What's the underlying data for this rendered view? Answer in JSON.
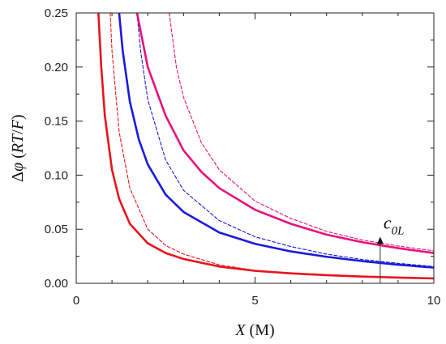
{
  "chart_data": {
    "type": "line",
    "xlabel": {
      "var": "X",
      "unit": " (M)"
    },
    "ylabel": {
      "delta": "Δ",
      "phi": "φ",
      "open": " (",
      "var": "RT",
      "slash": "/",
      "var2": "F",
      "close": ")"
    },
    "xlim": [
      0,
      10
    ],
    "ylim": [
      0,
      0.25
    ],
    "x_ticks": [
      0,
      5,
      10
    ],
    "x_tick_labels": [
      "0",
      "5",
      "10"
    ],
    "y_ticks": [
      0.0,
      0.05,
      0.1,
      0.15,
      0.2,
      0.25
    ],
    "y_tick_labels": [
      "0.00",
      "0.05",
      "0.10",
      "0.15",
      "0.20",
      "0.25"
    ],
    "grid": false,
    "annotation": {
      "base": "c",
      "sub": "0L",
      "arrow_x": 8.5,
      "arrow_from_y": 0.0,
      "arrow_to_y": 0.043
    },
    "series": [
      {
        "color": "#e8141c",
        "dash": false,
        "width": 2.6,
        "x": [
          0.62,
          0.7,
          0.8,
          1.0,
          1.2,
          1.5,
          2.0,
          2.5,
          3.0,
          4.0,
          5.0,
          6.0,
          7.0,
          8.0,
          9.0,
          10.0
        ],
        "y": [
          0.25,
          0.2,
          0.155,
          0.105,
          0.078,
          0.055,
          0.037,
          0.028,
          0.0225,
          0.0155,
          0.0115,
          0.0092,
          0.0075,
          0.0062,
          0.0053,
          0.0045
        ]
      },
      {
        "color": "#e8141c",
        "dash": true,
        "width": 1.1,
        "x": [
          0.95,
          1.0,
          1.2,
          1.5,
          2.0,
          2.5,
          3.0,
          4.0,
          5.0,
          6.0,
          8.0,
          10.0
        ],
        "y": [
          0.25,
          0.215,
          0.14,
          0.088,
          0.05,
          0.035,
          0.027,
          0.017,
          0.012,
          0.0093,
          0.0063,
          0.0046
        ]
      },
      {
        "color": "#1a1adc",
        "dash": false,
        "width": 2.6,
        "x": [
          1.2,
          1.3,
          1.5,
          1.75,
          2.0,
          2.5,
          3.0,
          4.0,
          5.0,
          6.0,
          7.0,
          8.0,
          9.0,
          10.0
        ],
        "y": [
          0.25,
          0.215,
          0.168,
          0.133,
          0.11,
          0.082,
          0.066,
          0.047,
          0.0365,
          0.0295,
          0.0245,
          0.0205,
          0.0172,
          0.0145
        ]
      },
      {
        "color": "#1a1adc",
        "dash": true,
        "width": 1.1,
        "x": [
          1.7,
          1.8,
          2.0,
          2.5,
          3.0,
          4.0,
          5.0,
          6.0,
          7.0,
          8.0,
          9.0,
          10.0
        ],
        "y": [
          0.25,
          0.215,
          0.17,
          0.114,
          0.086,
          0.058,
          0.043,
          0.034,
          0.027,
          0.022,
          0.0185,
          0.0155
        ]
      },
      {
        "color": "#e8107c",
        "dash": false,
        "width": 2.6,
        "x": [
          1.7,
          2.0,
          2.5,
          3.0,
          3.5,
          4.0,
          5.0,
          6.0,
          7.0,
          8.0,
          9.0,
          10.0
        ],
        "y": [
          0.25,
          0.2,
          0.155,
          0.123,
          0.103,
          0.088,
          0.068,
          0.055,
          0.045,
          0.038,
          0.0325,
          0.028
        ]
      },
      {
        "color": "#e8107c",
        "dash": true,
        "width": 1.1,
        "x": [
          2.6,
          2.8,
          3.0,
          3.5,
          4.0,
          5.0,
          6.0,
          7.0,
          8.0,
          9.0,
          10.0
        ],
        "y": [
          0.25,
          0.2,
          0.172,
          0.13,
          0.105,
          0.076,
          0.06,
          0.048,
          0.04,
          0.0345,
          0.03
        ]
      }
    ]
  }
}
